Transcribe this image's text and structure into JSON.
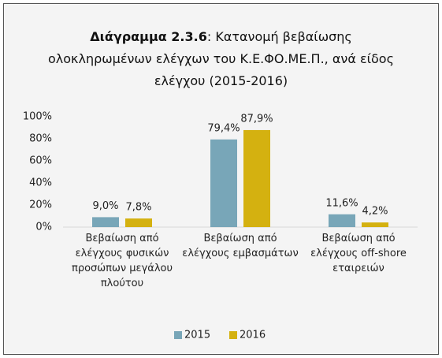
{
  "chart_data": {
    "type": "bar",
    "title_prefix": "Διάγραμμα 2.3.6",
    "title": ": Κατανομή βεβαίωσης ολοκληρωμένων ελέγχων του Κ.Ε.ΦΟ.ΜΕ.Π., ανά είδος ελέγχου (2015-2016)",
    "categories": [
      "Βεβαίωση από ελέγχους φυσικών προσώπων μεγάλου πλούτου",
      "Βεβαίωση από ελέγχους εμβασμάτων",
      "Βεβαίωση από ελέγχους off-shore εταιρειών"
    ],
    "series": [
      {
        "name": "2015",
        "color": "#78a6b8",
        "values": [
          9.0,
          79.4,
          11.6
        ],
        "value_labels": [
          "9,0%",
          "79,4%",
          "11,6%"
        ]
      },
      {
        "name": "2016",
        "color": "#d4b110",
        "values": [
          7.8,
          87.9,
          4.2
        ],
        "value_labels": [
          "7,8%",
          "87,9%",
          "4,2%"
        ]
      }
    ],
    "ylim": [
      0,
      100
    ],
    "yticks": [
      {
        "value": 0,
        "label": "0%"
      },
      {
        "value": 20,
        "label": "20%"
      },
      {
        "value": 40,
        "label": "40%"
      },
      {
        "value": 60,
        "label": "60%"
      },
      {
        "value": 80,
        "label": "80%"
      },
      {
        "value": 100,
        "label": "100%"
      }
    ],
    "grid": false,
    "legend": "bottom"
  }
}
